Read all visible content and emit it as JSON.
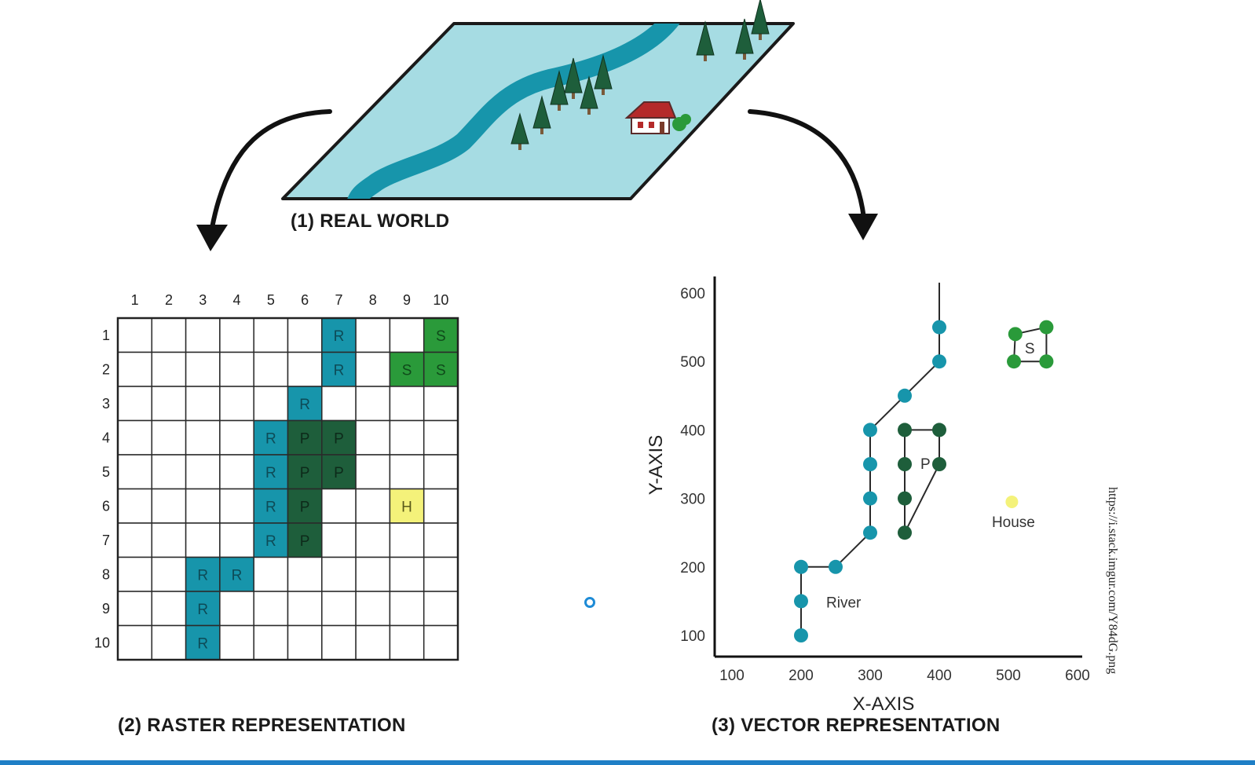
{
  "captions": {
    "real_world": "(1) REAL WORLD",
    "raster": "(2) RASTER REPRESENTATION",
    "vector": "(3) VECTOR REPRESENTATION"
  },
  "source_url": "https://i.stack.imgur.com/Y84dG.png",
  "colors": {
    "river": "#1795ab",
    "pine": "#1e5e3b",
    "shrub": "#2a9a3a",
    "house": "#f4f27a",
    "land": "#a6dce3",
    "outline": "#1a1a1a",
    "accent_bar": "#1f7fc6"
  },
  "raster": {
    "col_labels": [
      "1",
      "2",
      "3",
      "4",
      "5",
      "6",
      "7",
      "8",
      "9",
      "10"
    ],
    "row_labels": [
      "1",
      "2",
      "3",
      "4",
      "5",
      "6",
      "7",
      "8",
      "9",
      "10"
    ],
    "cells": [
      [
        "",
        "",
        "",
        "",
        "",
        "",
        "R",
        "",
        "",
        "S"
      ],
      [
        "",
        "",
        "",
        "",
        "",
        "",
        "R",
        "",
        "S",
        "S"
      ],
      [
        "",
        "",
        "",
        "",
        "",
        "R",
        "",
        "",
        "",
        ""
      ],
      [
        "",
        "",
        "",
        "",
        "R",
        "P",
        "P",
        "",
        "",
        ""
      ],
      [
        "",
        "",
        "",
        "",
        "R",
        "P",
        "P",
        "",
        "",
        ""
      ],
      [
        "",
        "",
        "",
        "",
        "R",
        "P",
        "",
        "",
        "H",
        ""
      ],
      [
        "",
        "",
        "",
        "",
        "R",
        "P",
        "",
        "",
        "",
        ""
      ],
      [
        "",
        "",
        "R",
        "R",
        "",
        "",
        "",
        "",
        "",
        ""
      ],
      [
        "",
        "",
        "R",
        "",
        "",
        "",
        "",
        "",
        "",
        ""
      ],
      [
        "",
        "",
        "R",
        "",
        "",
        "",
        "",
        "",
        "",
        ""
      ]
    ]
  },
  "chart_data": {
    "type": "scatter",
    "xlabel": "X-AXIS",
    "ylabel": "Y-AXIS",
    "xticks": [
      100,
      200,
      300,
      400,
      500,
      600
    ],
    "yticks": [
      100,
      200,
      300,
      400,
      500,
      600
    ],
    "xlim": [
      75,
      610
    ],
    "ylim": [
      75,
      615
    ],
    "river": {
      "label": "River",
      "points": [
        [
          200,
          100
        ],
        [
          200,
          150
        ],
        [
          200,
          200
        ],
        [
          250,
          200
        ],
        [
          300,
          250
        ],
        [
          300,
          300
        ],
        [
          300,
          350
        ],
        [
          300,
          400
        ],
        [
          350,
          450
        ],
        [
          400,
          500
        ],
        [
          400,
          550
        ]
      ],
      "extends_to": [
        400,
        615
      ]
    },
    "p_feature": {
      "label": "P",
      "points": [
        [
          350,
          400
        ],
        [
          400,
          400
        ],
        [
          400,
          350
        ],
        [
          350,
          250
        ],
        [
          350,
          300
        ],
        [
          350,
          350
        ]
      ]
    },
    "s_feature": {
      "label": "S",
      "points": [
        [
          510,
          540
        ],
        [
          555,
          550
        ],
        [
          555,
          500
        ],
        [
          508,
          500
        ]
      ]
    },
    "house": {
      "label": "House",
      "point": [
        505,
        295
      ]
    }
  }
}
